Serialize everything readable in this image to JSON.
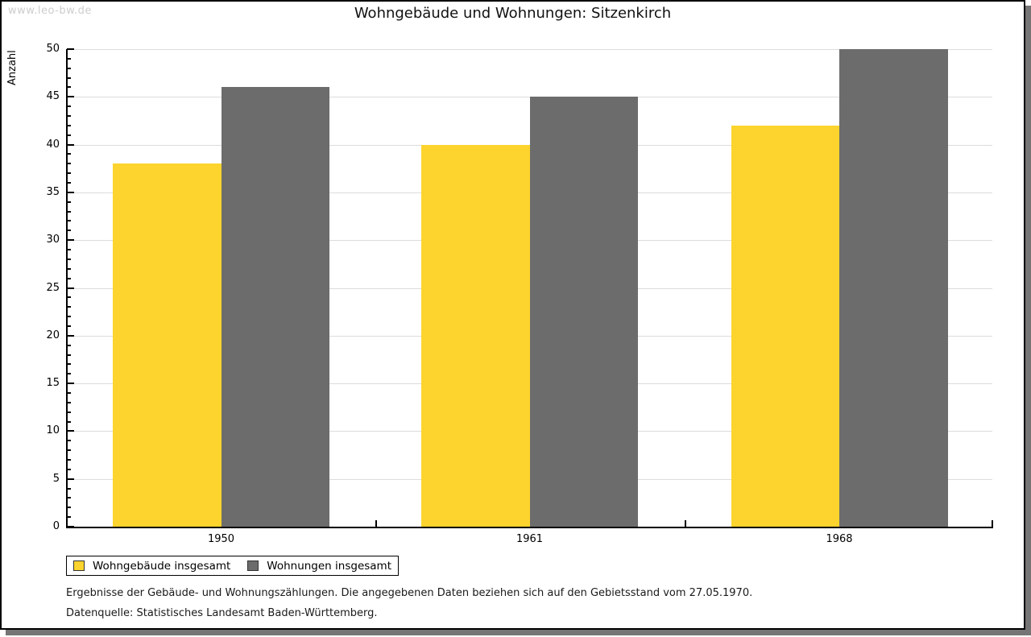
{
  "watermark": "www.leo-bw.de",
  "header": {
    "title": "Wohngebäude und Wohnungen: Sitzenkirch"
  },
  "chart_data": {
    "type": "bar",
    "title": "Wohngebäude und Wohnungen: Sitzenkirch",
    "ylabel": "Anzahl",
    "xlabel": "",
    "categories": [
      "1950",
      "1961",
      "1968"
    ],
    "series": [
      {
        "name": "Wohngebäude insgesamt",
        "color": "#FCD42D",
        "values": [
          38,
          40,
          42
        ]
      },
      {
        "name": "Wohnungen insgesamt",
        "color": "#6C6C6C",
        "values": [
          46,
          45,
          50
        ]
      }
    ],
    "ylim": [
      0,
      50
    ],
    "ytick_step": 5,
    "minor_tick_step": 1,
    "grid": "horizontal-major",
    "legend_position": "bottom-left"
  },
  "footer": {
    "line1": "Ergebnisse der Gebäude- und Wohnungszählungen. Die angegebenen Daten beziehen sich auf den Gebietsstand vom 27.05.1970.",
    "line2": "Datenquelle: Statistisches Landesamt Baden-Württemberg."
  },
  "colors": {
    "grid": "#dcdcdc",
    "axis": "#000000",
    "watermark": "#cdcdcd",
    "window_shadow": "#757575",
    "bar_yellow": "#FCD42D",
    "bar_gray": "#6C6C6C"
  }
}
